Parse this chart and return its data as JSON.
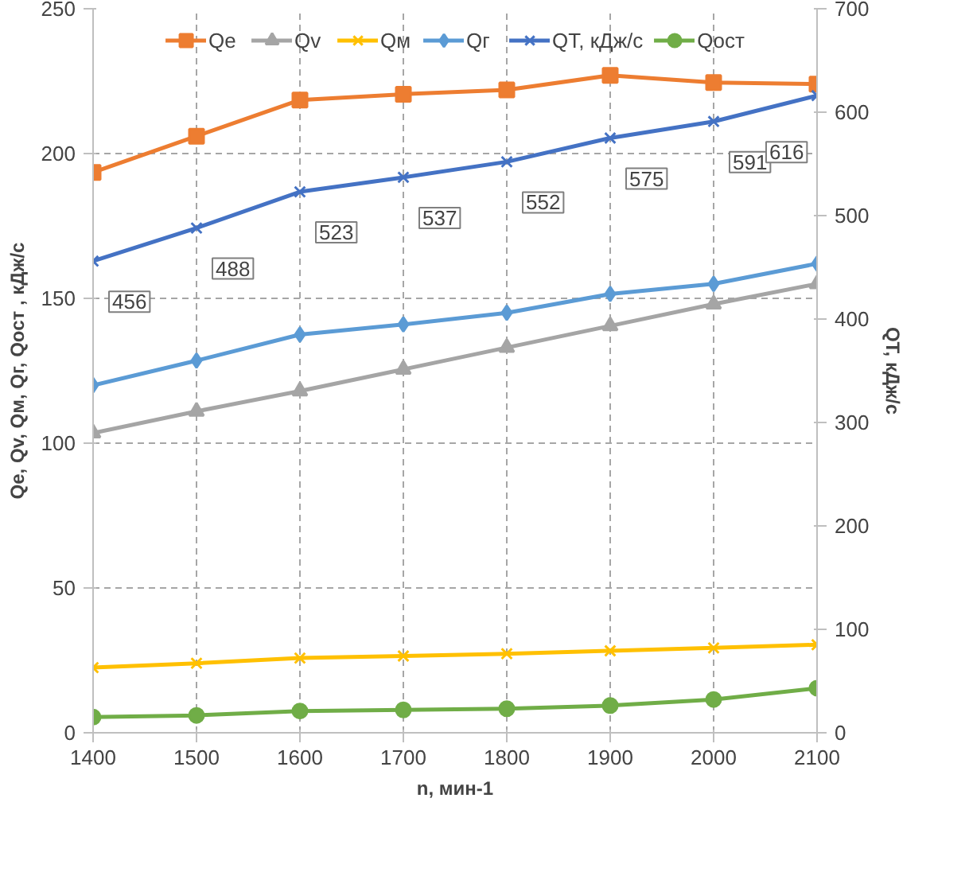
{
  "chart_data": {
    "type": "line",
    "xlabel": "n, мин-1",
    "ylabel": "Qe, Qv, Qм, Qг, Qост , кДж/с",
    "y2label": "QT, кДж/с",
    "x": [
      1400,
      1500,
      1600,
      1700,
      1800,
      1900,
      2000,
      2100
    ],
    "xlim": [
      1400,
      2100
    ],
    "xticks": [
      1400,
      1500,
      1600,
      1700,
      1800,
      1900,
      2000,
      2100
    ],
    "ylim": [
      0,
      250
    ],
    "yticks": [
      0,
      50,
      100,
      150,
      200,
      250
    ],
    "y2lim": [
      0,
      700
    ],
    "y2ticks": [
      0,
      100,
      200,
      300,
      400,
      500,
      600,
      700
    ],
    "grid": true,
    "legend": "top",
    "series": [
      {
        "name": "Qe",
        "color": "#ed7d31",
        "marker": "square",
        "values": [
          193.5,
          206,
          218.5,
          220.5,
          222,
          227,
          224.5,
          224
        ]
      },
      {
        "name": "Qv",
        "color": "#a5a5a5",
        "marker": "triangle",
        "values": [
          103.5,
          111,
          118,
          125.5,
          133,
          140.5,
          148,
          155
        ]
      },
      {
        "name": "Qм",
        "color": "#ffc000",
        "marker": "cross",
        "values": [
          22.5,
          24,
          25.8,
          26.5,
          27.3,
          28.3,
          29.3,
          30.4
        ]
      },
      {
        "name": "Qг",
        "color": "#5b9bd5",
        "marker": "diamond",
        "values": [
          120,
          128.5,
          137.5,
          141,
          145,
          151.5,
          155,
          162
        ]
      },
      {
        "name": "QT, кДж/с",
        "color": "#4472c4",
        "marker": "cross",
        "axis": "y2",
        "values": [
          456,
          488,
          523,
          537,
          552,
          575,
          591,
          616
        ],
        "value_labels": [
          "456",
          "488",
          "523",
          "537",
          "552",
          "575",
          "591",
          "616"
        ]
      },
      {
        "name": "Qост",
        "color": "#70ad47",
        "marker": "circle",
        "values": [
          5.4,
          6,
          7.5,
          7.9,
          8.3,
          9.4,
          11.5,
          15.4
        ]
      }
    ]
  }
}
